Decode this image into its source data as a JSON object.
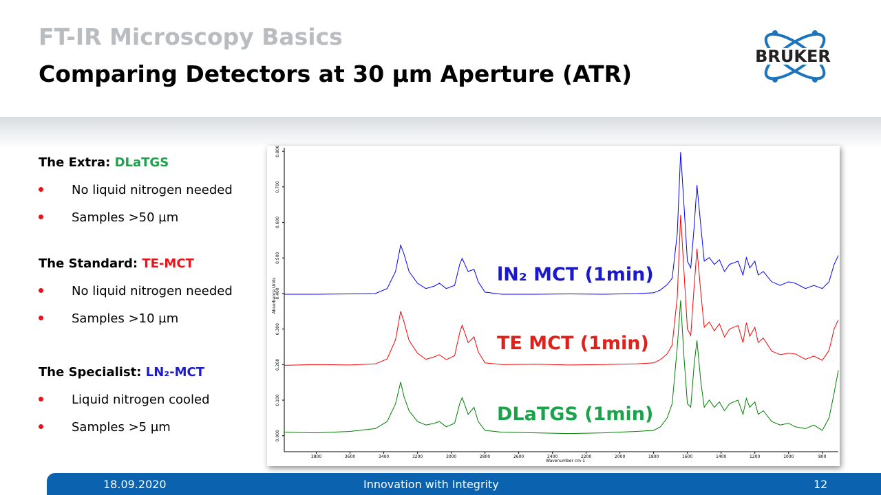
{
  "header": {
    "subtitle": "FT-IR Microscopy Basics",
    "title": "Comparing Detectors at 30 µm Aperture (ATR)",
    "logo": "BRUKER"
  },
  "sections": [
    {
      "label": "The Extra:",
      "detector": "DLaTGS",
      "color": "#1aa34a",
      "bullets": [
        "No liquid nitrogen needed",
        "Samples >50 µm"
      ]
    },
    {
      "label": "The Standard:",
      "detector": "TE-MCT",
      "color": "#e8141b",
      "bullets": [
        "No liquid nitrogen needed",
        "Samples >10 µm"
      ]
    },
    {
      "label": "The Specialist:",
      "detector": "LN₂-MCT",
      "color": "#1a1acc",
      "bullets": [
        "Liquid nitrogen cooled",
        "Samples >5 µm"
      ]
    }
  ],
  "chart_data": {
    "type": "line",
    "x_label": "Wavenumber cm-1",
    "y_label": "Absorbance Units",
    "x": [
      3990,
      3800,
      3600,
      3450,
      3380,
      3330,
      3300,
      3280,
      3250,
      3200,
      3150,
      3100,
      3070,
      3030,
      2980,
      2950,
      2935,
      2900,
      2865,
      2840,
      2800,
      2700,
      2500,
      2300,
      2100,
      1900,
      1800,
      1760,
      1720,
      1690,
      1660,
      1640,
      1620,
      1600,
      1580,
      1560,
      1543,
      1520,
      1500,
      1470,
      1440,
      1410,
      1380,
      1350,
      1300,
      1270,
      1250,
      1230,
      1200,
      1180,
      1150,
      1100,
      1050,
      1000,
      960,
      900,
      850,
      800,
      760,
      730,
      705
    ],
    "series": [
      {
        "name": "lN₂ MCT (1min)",
        "color": "#0000ff",
        "label_color": "#1a1acc",
        "values": [
          0.398,
          0.398,
          0.399,
          0.4,
          0.414,
          0.462,
          0.536,
          0.511,
          0.462,
          0.429,
          0.414,
          0.421,
          0.429,
          0.414,
          0.423,
          0.482,
          0.499,
          0.462,
          0.468,
          0.433,
          0.404,
          0.398,
          0.398,
          0.399,
          0.398,
          0.4,
          0.402,
          0.41,
          0.425,
          0.443,
          0.569,
          0.798,
          0.647,
          0.491,
          0.472,
          0.588,
          0.705,
          0.588,
          0.491,
          0.501,
          0.482,
          0.495,
          0.462,
          0.482,
          0.491,
          0.452,
          0.501,
          0.472,
          0.491,
          0.452,
          0.462,
          0.433,
          0.423,
          0.433,
          0.429,
          0.414,
          0.423,
          0.414,
          0.433,
          0.482,
          0.507
        ]
      },
      {
        "name": "TE MCT (1min)",
        "color": "#ff0000",
        "label_color": "#e0201b",
        "values": [
          0.198,
          0.2,
          0.199,
          0.202,
          0.216,
          0.27,
          0.35,
          0.32,
          0.268,
          0.232,
          0.215,
          0.222,
          0.228,
          0.214,
          0.225,
          0.29,
          0.311,
          0.262,
          0.278,
          0.236,
          0.205,
          0.2,
          0.201,
          0.199,
          0.2,
          0.202,
          0.205,
          0.214,
          0.23,
          0.255,
          0.39,
          0.621,
          0.46,
          0.3,
          0.282,
          0.42,
          0.526,
          0.4,
          0.305,
          0.32,
          0.295,
          0.315,
          0.278,
          0.3,
          0.31,
          0.262,
          0.318,
          0.28,
          0.305,
          0.262,
          0.275,
          0.238,
          0.228,
          0.232,
          0.23,
          0.215,
          0.224,
          0.212,
          0.24,
          0.3,
          0.326
        ]
      },
      {
        "name": "DLaTGS (1min)",
        "color": "#008000",
        "label_color": "#1aa34a",
        "values": [
          0.01,
          0.008,
          0.012,
          0.02,
          0.04,
          0.09,
          0.151,
          0.11,
          0.07,
          0.04,
          0.03,
          0.035,
          0.04,
          0.025,
          0.035,
          0.09,
          0.107,
          0.06,
          0.08,
          0.04,
          0.015,
          0.01,
          0.008,
          0.006,
          0.008,
          0.012,
          0.015,
          0.025,
          0.05,
          0.09,
          0.25,
          0.381,
          0.22,
          0.09,
          0.08,
          0.2,
          0.268,
          0.15,
          0.08,
          0.1,
          0.08,
          0.095,
          0.07,
          0.09,
          0.1,
          0.06,
          0.105,
          0.08,
          0.095,
          0.06,
          0.07,
          0.04,
          0.03,
          0.035,
          0.025,
          0.02,
          0.03,
          0.015,
          0.05,
          0.12,
          0.184
        ]
      }
    ],
    "xlim": [
      3990,
      705
    ],
    "xticks": [
      3800,
      3600,
      3400,
      3200,
      3000,
      2800,
      2600,
      2400,
      2200,
      2000,
      1800,
      1600,
      1400,
      1200,
      1000,
      800
    ],
    "ylim": [
      -0.045,
      0.81
    ],
    "yticks": [
      {
        "value": 0,
        "label": "0.000"
      },
      {
        "value": 0.1,
        "label": "0.100"
      },
      {
        "value": 0.2,
        "label": "0.200"
      },
      {
        "value": 0.3,
        "label": "0.300"
      },
      {
        "value": 0.4,
        "label": "0.400"
      },
      {
        "value": 0.5,
        "label": "0.500"
      },
      {
        "value": 0.6,
        "label": "0.600"
      },
      {
        "value": 0.7,
        "label": "0.700"
      },
      {
        "value": 0.8,
        "label": "0.800"
      }
    ]
  },
  "footer": {
    "date": "18.09.2020",
    "slogan": "Innovation with Integrity",
    "page": "12"
  }
}
